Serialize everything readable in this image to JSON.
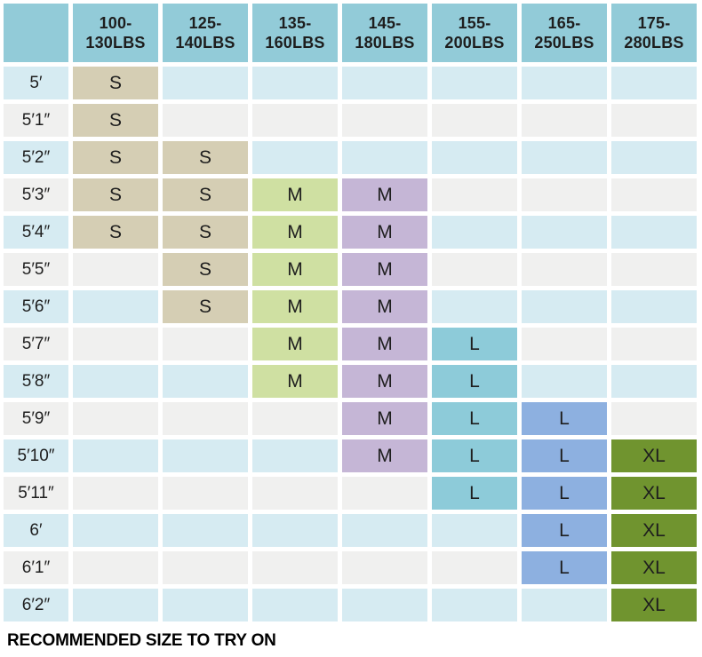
{
  "chart_data": {
    "type": "table",
    "title": "",
    "weight_columns": [
      "100-130LBS",
      "125-140LBS",
      "135-160LBS",
      "145-180LBS",
      "155-200LBS",
      "165-250LBS",
      "175-280LBS"
    ],
    "height_rows": [
      "5′",
      "5′1″",
      "5′2″",
      "5′3″",
      "5′4″",
      "5′5″",
      "5′6″",
      "5′7″",
      "5′8″",
      "5′9″",
      "5′10″",
      "5′11″",
      "6′",
      "6′1″",
      "6′2″"
    ],
    "sizes": [
      [
        "S",
        "",
        "",
        "",
        "",
        "",
        ""
      ],
      [
        "S",
        "",
        "",
        "",
        "",
        "",
        ""
      ],
      [
        "S",
        "S",
        "",
        "",
        "",
        "",
        ""
      ],
      [
        "S",
        "S",
        "M",
        "M",
        "",
        "",
        ""
      ],
      [
        "S",
        "S",
        "M",
        "M",
        "",
        "",
        ""
      ],
      [
        "",
        "S",
        "M",
        "M",
        "",
        "",
        ""
      ],
      [
        "",
        "S",
        "M",
        "M",
        "",
        "",
        ""
      ],
      [
        "",
        "",
        "M",
        "M",
        "L",
        "",
        ""
      ],
      [
        "",
        "",
        "M",
        "M",
        "L",
        "",
        ""
      ],
      [
        "",
        "",
        "",
        "M",
        "L",
        "L",
        ""
      ],
      [
        "",
        "",
        "",
        "M",
        "L",
        "L",
        "XL"
      ],
      [
        "",
        "",
        "",
        "",
        "L",
        "L",
        "XL"
      ],
      [
        "",
        "",
        "",
        "",
        "",
        "L",
        "XL"
      ],
      [
        "",
        "",
        "",
        "",
        "",
        "L",
        "XL"
      ],
      [
        "",
        "",
        "",
        "",
        "",
        "",
        "XL"
      ]
    ],
    "legend_note": "RECOMMENDED SIZE TO TRY ON"
  },
  "colors": {
    "header_bg": "#92cbd8",
    "row_even_bg": "#d6ebf2",
    "row_odd_bg": "#f0f0ef",
    "text": "#1e1e1e",
    "size_s_tan": "#d5ceb4",
    "size_m_green": "#cfe0a2",
    "size_m_purple": "#c5b6d6",
    "size_l_teal": "#8dcbd9",
    "size_l_blue": "#8db0e0",
    "size_xl_olive": "#70942f",
    "column_fill": [
      "#d5ceb4",
      "#d5ceb4",
      "#cfe0a2",
      "#c5b6d6",
      "#8dcbd9",
      "#8db0e0",
      "#70942f"
    ]
  }
}
